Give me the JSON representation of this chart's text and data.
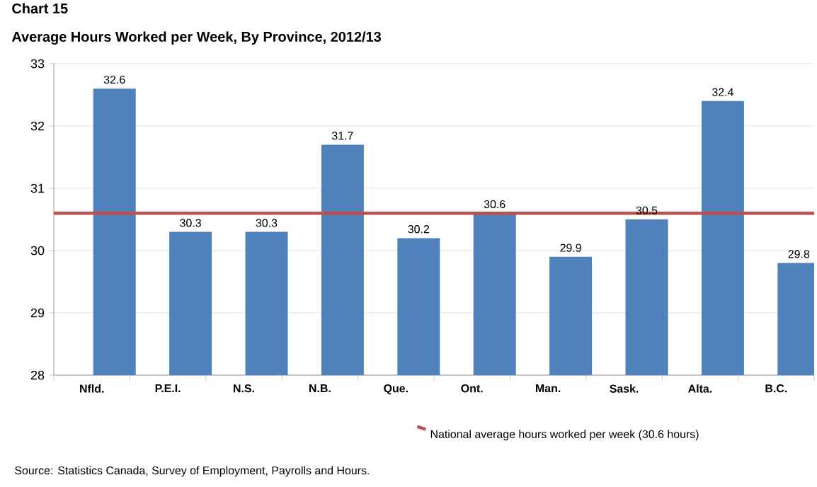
{
  "chart_data": {
    "type": "bar",
    "title": "Chart 15",
    "subtitle": "Average Hours Worked per Week, By Province, 2012/13",
    "categories": [
      "Nfld.",
      "P.E.I.",
      "N.S.",
      "N.B.",
      "Que.",
      "Ont.",
      "Man.",
      "Sask.",
      "Alta.",
      "B.C."
    ],
    "values": [
      32.6,
      30.3,
      30.3,
      31.7,
      30.2,
      30.6,
      29.9,
      30.5,
      32.4,
      29.8
    ],
    "color": "#4f81bd",
    "ylim": [
      28,
      33
    ],
    "yticks": [
      28,
      29,
      30,
      31,
      32,
      33
    ],
    "data_labels": true,
    "grid": "y",
    "legend": "bottom",
    "ref_lines": [
      {
        "axis": "y",
        "value": 30.6,
        "label": "National average hours worked per week (30.6 hours)",
        "color": "#c0504d"
      }
    ],
    "annotations": [
      "Source: Statistics Canada, Survey of Employment, Payrolls  and Hours."
    ]
  }
}
